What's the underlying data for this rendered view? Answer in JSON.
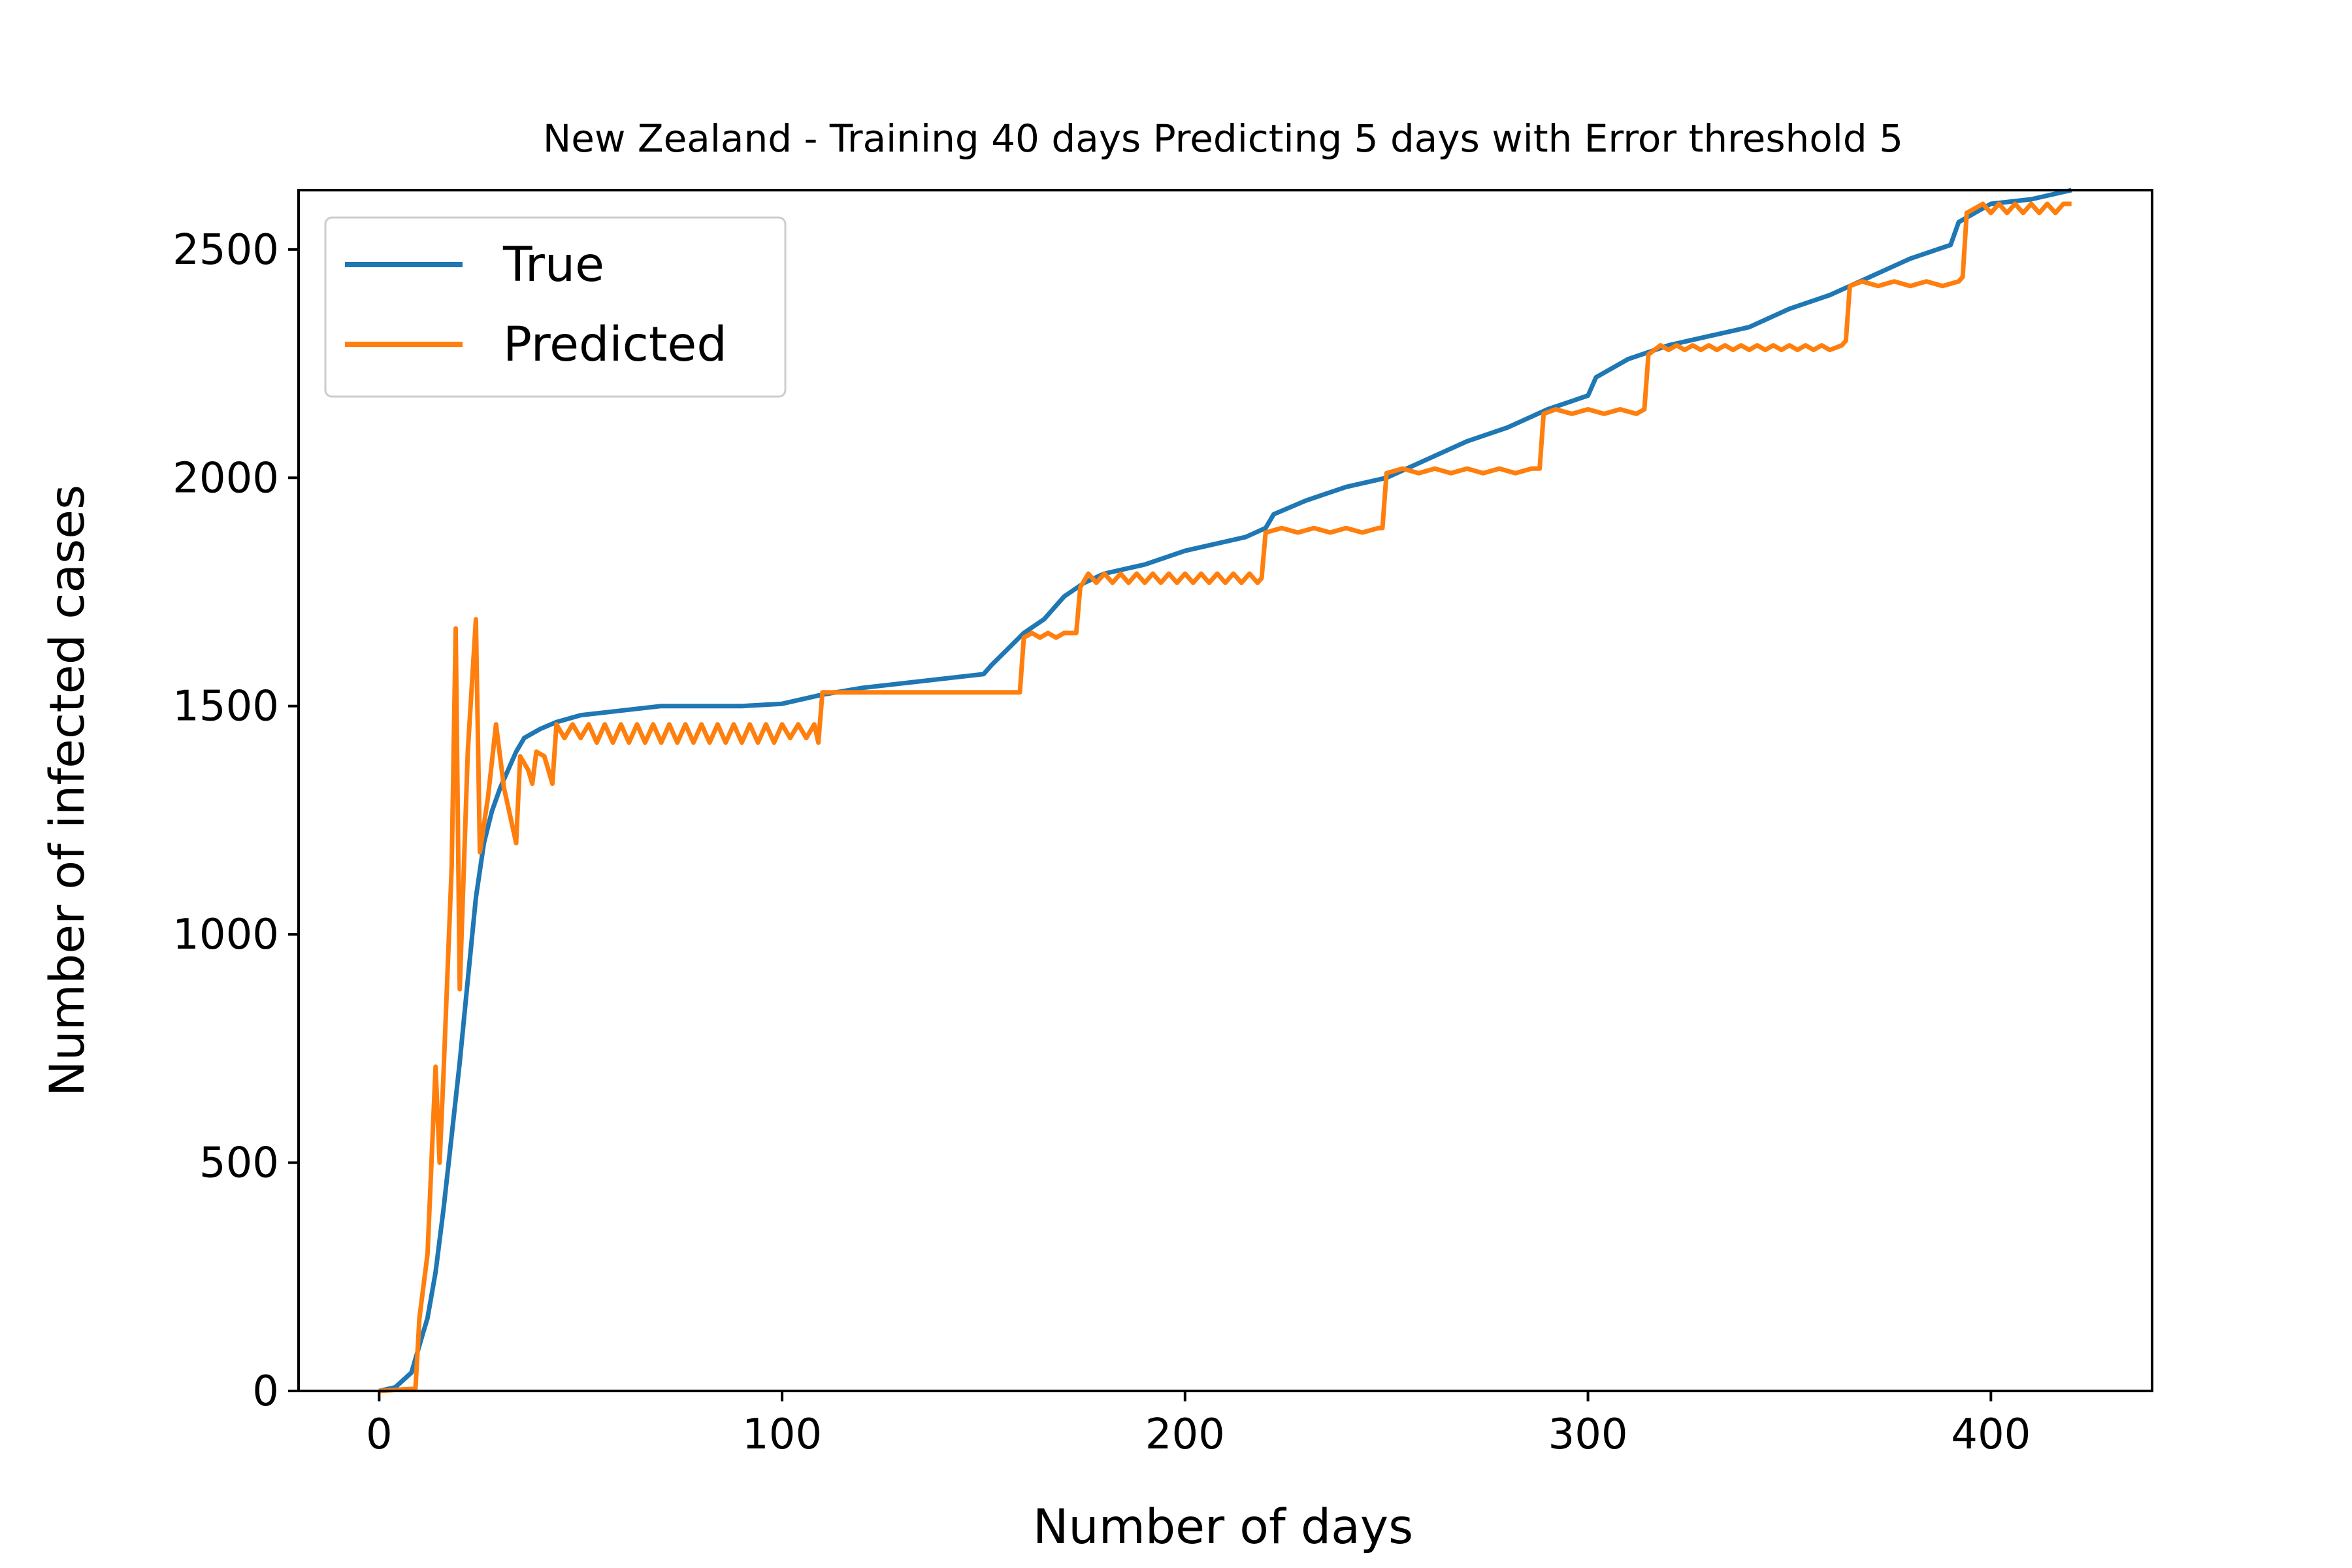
{
  "chart_data": {
    "type": "line",
    "title": "New Zealand - Training 40 days Predicting 5 days with Error threshold 5",
    "xlabel": "Number of days",
    "ylabel": "Number of infected cases",
    "xlim": [
      -20,
      440
    ],
    "ylim": [
      0,
      2630
    ],
    "xticks": [
      0,
      100,
      200,
      300,
      400
    ],
    "yticks": [
      0,
      500,
      1000,
      1500,
      2000,
      2500
    ],
    "xtick_labels": [
      "0",
      "100",
      "200",
      "300",
      "400"
    ],
    "ytick_labels": [
      "0",
      "500",
      "1000",
      "1500",
      "2000",
      "2500"
    ],
    "legend": {
      "position": "upper-left",
      "entries": [
        "True",
        "Predicted"
      ]
    },
    "grid": false,
    "colors": {
      "True": "#1f77b4",
      "Predicted": "#ff7f0e"
    },
    "series": [
      {
        "name": "True",
        "points": [
          [
            0,
            0
          ],
          [
            4,
            8
          ],
          [
            8,
            40
          ],
          [
            10,
            100
          ],
          [
            12,
            160
          ],
          [
            14,
            260
          ],
          [
            16,
            400
          ],
          [
            18,
            560
          ],
          [
            20,
            720
          ],
          [
            22,
            900
          ],
          [
            24,
            1080
          ],
          [
            26,
            1200
          ],
          [
            28,
            1270
          ],
          [
            30,
            1320
          ],
          [
            32,
            1360
          ],
          [
            34,
            1400
          ],
          [
            36,
            1430
          ],
          [
            40,
            1450
          ],
          [
            44,
            1465
          ],
          [
            50,
            1480
          ],
          [
            60,
            1490
          ],
          [
            70,
            1500
          ],
          [
            80,
            1500
          ],
          [
            90,
            1500
          ],
          [
            100,
            1505
          ],
          [
            110,
            1525
          ],
          [
            120,
            1540
          ],
          [
            130,
            1550
          ],
          [
            140,
            1560
          ],
          [
            150,
            1570
          ],
          [
            152,
            1590
          ],
          [
            156,
            1625
          ],
          [
            160,
            1660
          ],
          [
            165,
            1690
          ],
          [
            170,
            1740
          ],
          [
            175,
            1770
          ],
          [
            180,
            1790
          ],
          [
            190,
            1810
          ],
          [
            200,
            1840
          ],
          [
            210,
            1860
          ],
          [
            215,
            1870
          ],
          [
            220,
            1890
          ],
          [
            222,
            1920
          ],
          [
            230,
            1950
          ],
          [
            240,
            1980
          ],
          [
            250,
            2000
          ],
          [
            260,
            2040
          ],
          [
            270,
            2080
          ],
          [
            280,
            2110
          ],
          [
            290,
            2150
          ],
          [
            300,
            2180
          ],
          [
            302,
            2220
          ],
          [
            310,
            2260
          ],
          [
            320,
            2290
          ],
          [
            330,
            2310
          ],
          [
            340,
            2330
          ],
          [
            350,
            2370
          ],
          [
            360,
            2400
          ],
          [
            370,
            2440
          ],
          [
            380,
            2480
          ],
          [
            390,
            2510
          ],
          [
            392,
            2560
          ],
          [
            400,
            2600
          ],
          [
            410,
            2610
          ],
          [
            420,
            2630
          ]
        ]
      },
      {
        "name": "Predicted",
        "points": [
          [
            0,
            0
          ],
          [
            9,
            5
          ],
          [
            10,
            160
          ],
          [
            12,
            300
          ],
          [
            14,
            710
          ],
          [
            15,
            500
          ],
          [
            16,
            700
          ],
          [
            18,
            1150
          ],
          [
            19,
            1670
          ],
          [
            20,
            880
          ],
          [
            22,
            1400
          ],
          [
            24,
            1690
          ],
          [
            25,
            1180
          ],
          [
            27,
            1300
          ],
          [
            29,
            1460
          ],
          [
            31,
            1320
          ],
          [
            32,
            1280
          ],
          [
            34,
            1200
          ],
          [
            35,
            1390
          ],
          [
            37,
            1360
          ],
          [
            38,
            1330
          ],
          [
            39,
            1400
          ],
          [
            41,
            1390
          ],
          [
            43,
            1330
          ],
          [
            44,
            1460
          ],
          [
            46,
            1430
          ],
          [
            48,
            1460
          ],
          [
            50,
            1430
          ],
          [
            52,
            1460
          ],
          [
            54,
            1420
          ],
          [
            56,
            1460
          ],
          [
            58,
            1420
          ],
          [
            60,
            1460
          ],
          [
            62,
            1420
          ],
          [
            64,
            1460
          ],
          [
            66,
            1420
          ],
          [
            68,
            1460
          ],
          [
            70,
            1420
          ],
          [
            72,
            1460
          ],
          [
            74,
            1420
          ],
          [
            76,
            1460
          ],
          [
            78,
            1420
          ],
          [
            80,
            1460
          ],
          [
            82,
            1420
          ],
          [
            84,
            1460
          ],
          [
            86,
            1420
          ],
          [
            88,
            1460
          ],
          [
            90,
            1420
          ],
          [
            92,
            1460
          ],
          [
            94,
            1420
          ],
          [
            96,
            1460
          ],
          [
            98,
            1420
          ],
          [
            100,
            1460
          ],
          [
            102,
            1430
          ],
          [
            104,
            1460
          ],
          [
            106,
            1430
          ],
          [
            108,
            1460
          ],
          [
            109,
            1420
          ],
          [
            110,
            1530
          ],
          [
            120,
            1530
          ],
          [
            130,
            1530
          ],
          [
            140,
            1530
          ],
          [
            150,
            1530
          ],
          [
            159,
            1530
          ],
          [
            160,
            1650
          ],
          [
            162,
            1660
          ],
          [
            164,
            1650
          ],
          [
            166,
            1660
          ],
          [
            168,
            1650
          ],
          [
            170,
            1660
          ],
          [
            173,
            1660
          ],
          [
            174,
            1760
          ],
          [
            176,
            1790
          ],
          [
            178,
            1770
          ],
          [
            180,
            1790
          ],
          [
            182,
            1770
          ],
          [
            184,
            1790
          ],
          [
            186,
            1770
          ],
          [
            188,
            1790
          ],
          [
            190,
            1770
          ],
          [
            192,
            1790
          ],
          [
            194,
            1770
          ],
          [
            196,
            1790
          ],
          [
            198,
            1770
          ],
          [
            200,
            1790
          ],
          [
            202,
            1770
          ],
          [
            204,
            1790
          ],
          [
            206,
            1770
          ],
          [
            208,
            1790
          ],
          [
            210,
            1770
          ],
          [
            212,
            1790
          ],
          [
            214,
            1770
          ],
          [
            216,
            1790
          ],
          [
            218,
            1770
          ],
          [
            219,
            1780
          ],
          [
            220,
            1880
          ],
          [
            224,
            1890
          ],
          [
            228,
            1880
          ],
          [
            232,
            1890
          ],
          [
            236,
            1880
          ],
          [
            240,
            1890
          ],
          [
            244,
            1880
          ],
          [
            248,
            1890
          ],
          [
            249,
            1890
          ],
          [
            250,
            2010
          ],
          [
            254,
            2020
          ],
          [
            258,
            2010
          ],
          [
            262,
            2020
          ],
          [
            266,
            2010
          ],
          [
            270,
            2020
          ],
          [
            274,
            2010
          ],
          [
            278,
            2020
          ],
          [
            282,
            2010
          ],
          [
            286,
            2020
          ],
          [
            288,
            2020
          ],
          [
            289,
            2140
          ],
          [
            292,
            2150
          ],
          [
            296,
            2140
          ],
          [
            300,
            2150
          ],
          [
            304,
            2140
          ],
          [
            308,
            2150
          ],
          [
            312,
            2140
          ],
          [
            314,
            2150
          ],
          [
            315,
            2270
          ],
          [
            318,
            2290
          ],
          [
            320,
            2280
          ],
          [
            322,
            2290
          ],
          [
            324,
            2280
          ],
          [
            326,
            2290
          ],
          [
            328,
            2280
          ],
          [
            330,
            2290
          ],
          [
            332,
            2280
          ],
          [
            334,
            2290
          ],
          [
            336,
            2280
          ],
          [
            338,
            2290
          ],
          [
            340,
            2280
          ],
          [
            342,
            2290
          ],
          [
            344,
            2280
          ],
          [
            346,
            2290
          ],
          [
            348,
            2280
          ],
          [
            350,
            2290
          ],
          [
            352,
            2280
          ],
          [
            354,
            2290
          ],
          [
            356,
            2280
          ],
          [
            358,
            2290
          ],
          [
            360,
            2280
          ],
          [
            363,
            2290
          ],
          [
            364,
            2300
          ],
          [
            365,
            2420
          ],
          [
            368,
            2430
          ],
          [
            372,
            2420
          ],
          [
            376,
            2430
          ],
          [
            380,
            2420
          ],
          [
            384,
            2430
          ],
          [
            388,
            2420
          ],
          [
            392,
            2430
          ],
          [
            393,
            2440
          ],
          [
            394,
            2580
          ],
          [
            396,
            2590
          ],
          [
            398,
            2600
          ],
          [
            400,
            2580
          ],
          [
            402,
            2600
          ],
          [
            404,
            2580
          ],
          [
            406,
            2600
          ],
          [
            408,
            2580
          ],
          [
            410,
            2600
          ],
          [
            412,
            2580
          ],
          [
            414,
            2600
          ],
          [
            416,
            2580
          ],
          [
            418,
            2600
          ],
          [
            420,
            2600
          ]
        ]
      }
    ]
  }
}
